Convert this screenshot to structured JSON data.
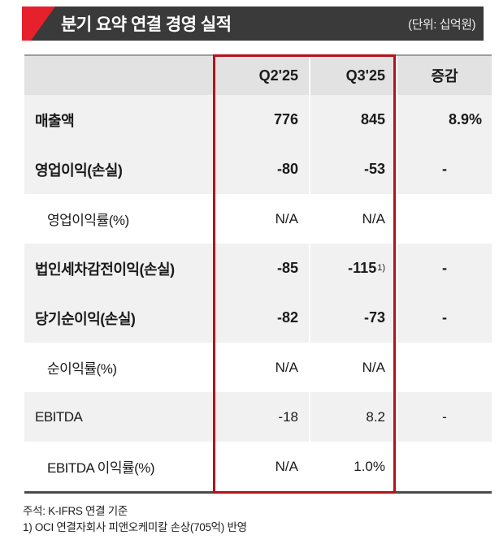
{
  "header": {
    "title": "분기 요약 연결 경영 실적",
    "unit_label": "(단위: 십억원)"
  },
  "table": {
    "columns": {
      "label": "",
      "q2": "Q2'25",
      "q3": "Q3'25",
      "change": "증감"
    },
    "rows": [
      {
        "label": "매출액",
        "q2": "776",
        "q3": "845",
        "change": "8.9%"
      },
      {
        "label": "영업이익(손실)",
        "q2": "-80",
        "q3": "-53",
        "change": "-"
      },
      {
        "label": "영업이익률(%)",
        "q2": "N/A",
        "q3": "N/A",
        "change": ""
      },
      {
        "label": "법인세차감전이익(손실)",
        "q2": "-85",
        "q3": "-115",
        "q3_sup": "1)",
        "change": "-"
      },
      {
        "label": "당기순이익(손실)",
        "q2": "-82",
        "q3": "-73",
        "change": "-"
      },
      {
        "label": "순이익률(%)",
        "q2": "N/A",
        "q3": "N/A",
        "change": ""
      },
      {
        "label": "EBITDA",
        "q2": "-18",
        "q3": "8.2",
        "change": "-"
      },
      {
        "label": "EBITDA 이익률(%)",
        "q2": "N/A",
        "q3": "1.0%",
        "change": ""
      }
    ]
  },
  "footnotes": [
    "주석: K-IFRS 연결 기준",
    "1) OCI 연결자회사 피앤오케미칼 손상(705억) 반영"
  ],
  "colors": {
    "bar_dark": "#3a3a3a",
    "flag_red": "#e6212b",
    "highlight_red": "#b5121b",
    "header_row_bg": "#e2e2e2",
    "main_row_bg": "#f1f1f1"
  }
}
